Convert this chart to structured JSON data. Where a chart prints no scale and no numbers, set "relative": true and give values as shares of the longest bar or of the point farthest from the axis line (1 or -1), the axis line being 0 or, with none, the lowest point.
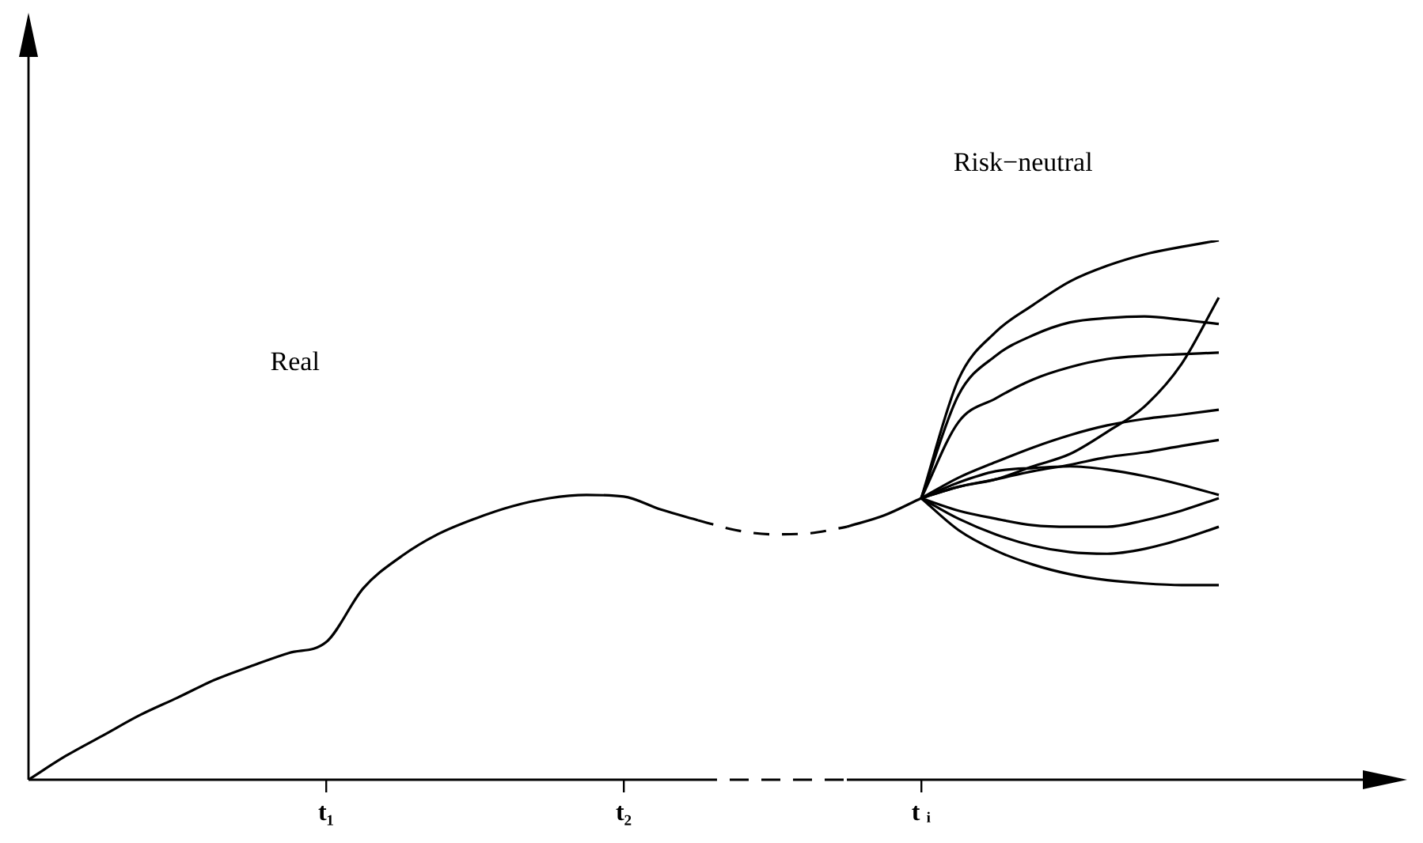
{
  "chart_data": {
    "type": "line",
    "relative": true,
    "marker": "none",
    "tick_labels": "x",
    "categories": [
      null,
      null,
      null,
      null,
      null,
      null,
      null,
      null,
      "t₁",
      null,
      null,
      null,
      null,
      null,
      null,
      null,
      "t₂",
      null,
      null,
      null,
      null,
      null,
      null,
      null,
      "t ᵢ",
      null,
      null,
      null,
      null,
      null,
      null,
      null,
      null,
      null,
      null,
      null,
      null
    ],
    "annotations": [
      "Real",
      "Risk−neutral"
    ],
    "series": [
      {
        "color": "#000000",
        "line_style": "solid",
        "values": [
          0,
          0.044,
          0.082,
          0.12,
          0.152,
          0.185,
          0.211,
          0.235,
          0.255,
          0.355,
          0.413,
          0.455,
          0.484,
          0.507,
          0.522,
          0.528,
          0.525,
          0.501,
          0.481,
          null,
          null,
          null,
          null,
          null,
          null,
          null,
          null,
          null,
          null,
          null,
          null,
          null,
          null,
          null,
          null,
          null,
          null
        ]
      },
      {
        "color": "#000000",
        "line_style": "dashed",
        "values": [
          null,
          null,
          null,
          null,
          null,
          null,
          null,
          null,
          null,
          null,
          null,
          null,
          null,
          null,
          null,
          null,
          null,
          null,
          0.481,
          0.463,
          0.455,
          0.457,
          0.469,
          null,
          null,
          null,
          null,
          null,
          null,
          null,
          null,
          null,
          null,
          null,
          null,
          null,
          null
        ]
      },
      {
        "color": "#000000",
        "line_style": "solid",
        "values": [
          null,
          null,
          null,
          null,
          null,
          null,
          null,
          null,
          null,
          null,
          null,
          null,
          null,
          null,
          null,
          null,
          null,
          null,
          null,
          null,
          null,
          null,
          0.469,
          0.49,
          0.522,
          null,
          null,
          null,
          null,
          null,
          null,
          null,
          null,
          null,
          null,
          null,
          null
        ]
      },
      {
        "color": "#000000",
        "line_style": "solid",
        "values": [
          null,
          null,
          null,
          null,
          null,
          null,
          null,
          null,
          null,
          null,
          null,
          null,
          null,
          null,
          null,
          null,
          null,
          null,
          null,
          null,
          null,
          null,
          null,
          null,
          0.522,
          0.742,
          0.83,
          0.88,
          0.924,
          0.953,
          0.974,
          0.988,
          1,
          null,
          null,
          null,
          null
        ]
      },
      {
        "color": "#000000",
        "line_style": "solid",
        "values": [
          null,
          null,
          null,
          null,
          null,
          null,
          null,
          null,
          null,
          null,
          null,
          null,
          null,
          null,
          null,
          null,
          null,
          null,
          null,
          null,
          null,
          null,
          null,
          null,
          0.522,
          0.713,
          0.786,
          0.824,
          0.848,
          0.856,
          0.859,
          0.853,
          0.845,
          null,
          null,
          null,
          null
        ]
      },
      {
        "color": "#000000",
        "line_style": "solid",
        "values": [
          null,
          null,
          null,
          null,
          null,
          null,
          null,
          null,
          null,
          null,
          null,
          null,
          null,
          null,
          null,
          null,
          null,
          null,
          null,
          null,
          null,
          null,
          null,
          null,
          0.522,
          0.663,
          0.707,
          0.742,
          0.765,
          0.78,
          0.786,
          0.789,
          0.792,
          null,
          null,
          null,
          null
        ]
      },
      {
        "color": "#000000",
        "line_style": "solid",
        "values": [
          null,
          null,
          null,
          null,
          null,
          null,
          null,
          null,
          null,
          null,
          null,
          null,
          null,
          null,
          null,
          null,
          null,
          null,
          null,
          null,
          null,
          null,
          null,
          null,
          0.522,
          0.543,
          0.557,
          0.581,
          0.604,
          0.645,
          0.692,
          0.771,
          0.894,
          null,
          null,
          null,
          null
        ]
      },
      {
        "color": "#000000",
        "line_style": "solid",
        "values": [
          null,
          null,
          null,
          null,
          null,
          null,
          null,
          null,
          null,
          null,
          null,
          null,
          null,
          null,
          null,
          null,
          null,
          null,
          null,
          null,
          null,
          null,
          null,
          null,
          0.522,
          0.56,
          0.589,
          0.616,
          0.639,
          0.657,
          0.669,
          0.677,
          0.686,
          null,
          null,
          null,
          null
        ]
      },
      {
        "color": "#000000",
        "line_style": "solid",
        "values": [
          null,
          null,
          null,
          null,
          null,
          null,
          null,
          null,
          null,
          null,
          null,
          null,
          null,
          null,
          null,
          null,
          null,
          null,
          null,
          null,
          null,
          null,
          null,
          null,
          0.522,
          0.543,
          0.557,
          0.572,
          0.584,
          0.598,
          0.607,
          0.619,
          0.63,
          null,
          null,
          null,
          null
        ]
      },
      {
        "color": "#000000",
        "line_style": "solid",
        "values": [
          null,
          null,
          null,
          null,
          null,
          null,
          null,
          null,
          null,
          null,
          null,
          null,
          null,
          null,
          null,
          null,
          null,
          null,
          null,
          null,
          null,
          null,
          null,
          null,
          0.522,
          0.551,
          0.572,
          0.578,
          0.581,
          0.575,
          0.563,
          0.547,
          0.528,
          null,
          null,
          null,
          null
        ]
      },
      {
        "color": "#000000",
        "line_style": "solid",
        "values": [
          null,
          null,
          null,
          null,
          null,
          null,
          null,
          null,
          null,
          null,
          null,
          null,
          null,
          null,
          null,
          null,
          null,
          null,
          null,
          null,
          null,
          null,
          null,
          null,
          0.522,
          0.499,
          0.484,
          0.472,
          0.469,
          0.469,
          0.481,
          0.499,
          0.522,
          null,
          null,
          null,
          null
        ]
      },
      {
        "color": "#000000",
        "line_style": "solid",
        "values": [
          null,
          null,
          null,
          null,
          null,
          null,
          null,
          null,
          null,
          null,
          null,
          null,
          null,
          null,
          null,
          null,
          null,
          null,
          null,
          null,
          null,
          null,
          null,
          null,
          0.522,
          0.484,
          0.455,
          0.434,
          0.422,
          0.419,
          0.428,
          0.446,
          0.469,
          null,
          null,
          null,
          null
        ]
      },
      {
        "color": "#000000",
        "line_style": "solid",
        "values": [
          null,
          null,
          null,
          null,
          null,
          null,
          null,
          null,
          null,
          null,
          null,
          null,
          null,
          null,
          null,
          null,
          null,
          null,
          null,
          null,
          null,
          null,
          null,
          null,
          0.522,
          0.463,
          0.425,
          0.399,
          0.381,
          0.37,
          0.364,
          0.361,
          0.361,
          null,
          null,
          null,
          null
        ]
      }
    ]
  }
}
